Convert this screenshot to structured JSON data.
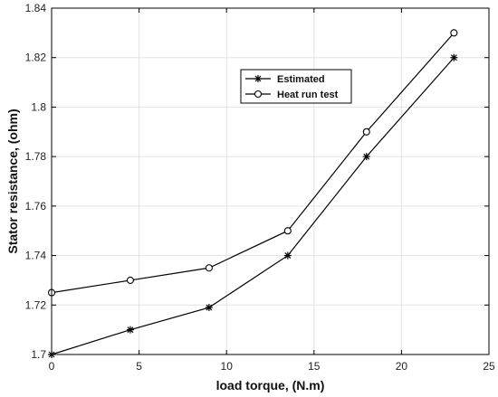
{
  "chart_data": {
    "type": "line",
    "xlabel": "load torque, (N.m)",
    "ylabel": "Stator resistance, (ohm)",
    "xlim": [
      0,
      25
    ],
    "ylim": [
      1.7,
      1.84
    ],
    "xticks": [
      0,
      5,
      10,
      15,
      20,
      25
    ],
    "yticks": [
      1.7,
      1.72,
      1.74,
      1.76,
      1.78,
      1.8,
      1.82,
      1.84
    ],
    "xtick_labels": [
      "0",
      "5",
      "10",
      "15",
      "20",
      "25"
    ],
    "ytick_labels": [
      "1.7",
      "1.72",
      "1.74",
      "1.76",
      "1.78",
      "1.8",
      "1.82",
      "1.84"
    ],
    "grid": true,
    "legend_position": "upper-middle-right",
    "x": [
      0,
      4.5,
      9,
      13.5,
      18,
      23
    ],
    "series": [
      {
        "name": "Estimated",
        "marker": "asterisk",
        "color": "#000000",
        "values": [
          1.7,
          1.71,
          1.719,
          1.74,
          1.78,
          1.82
        ]
      },
      {
        "name": "Heat run test",
        "marker": "circle",
        "color": "#000000",
        "values": [
          1.725,
          1.73,
          1.735,
          1.75,
          1.79,
          1.83
        ]
      }
    ]
  }
}
